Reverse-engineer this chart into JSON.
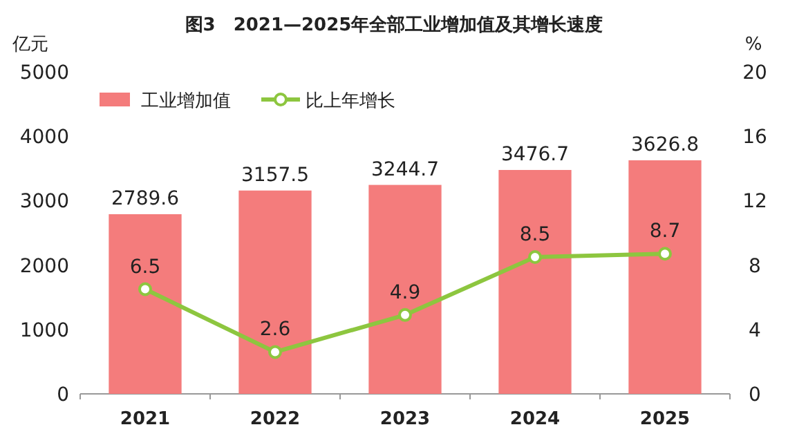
{
  "chart_data": {
    "type": "bar",
    "title": "图3　2021—2025年全部工业增加值及其增长速度",
    "ylabel": "亿元",
    "y2label": "%",
    "categories": [
      "2021",
      "2022",
      "2023",
      "2024",
      "2025"
    ],
    "series": [
      {
        "name": "工业增加值",
        "color": "#f47c7c",
        "values": [
          2789.6,
          3157.5,
          3244.7,
          3476.7,
          3626.8
        ]
      },
      {
        "name": "比上年增长",
        "type": "line",
        "axis": "y2",
        "color": "#8dc63f",
        "values": [
          6.5,
          2.6,
          4.9,
          8.5,
          8.7
        ]
      }
    ],
    "ylim": [
      0,
      5000
    ],
    "yticks": [
      0,
      1000,
      2000,
      3000,
      4000,
      5000
    ],
    "y2lim": [
      0,
      20
    ],
    "y2ticks": [
      0,
      4,
      8,
      12,
      16,
      20
    ],
    "legend": "top left",
    "data_labels": true,
    "marker": "circle"
  }
}
